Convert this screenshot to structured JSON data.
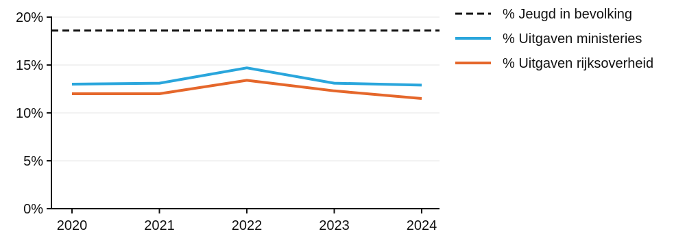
{
  "chart_data": {
    "type": "line",
    "title": "",
    "xlabel": "",
    "ylabel": "",
    "x": [
      "2020",
      "2021",
      "2022",
      "2023",
      "2024"
    ],
    "ylim": [
      0,
      20
    ],
    "yticks": [
      "0%",
      "5%",
      "10%",
      "15%",
      "20%"
    ],
    "ytick_values": [
      0,
      5,
      10,
      15,
      20
    ],
    "grid": "horizontal",
    "legend_position": "right",
    "series": [
      {
        "name": "% Jeugd in bevolking",
        "values": [
          18.6,
          18.6,
          18.6,
          18.6,
          18.6
        ],
        "color": "#111111",
        "style": "dashed"
      },
      {
        "name": "% Uitgaven ministeries",
        "values": [
          13.0,
          13.1,
          14.7,
          13.1,
          12.9
        ],
        "color": "#2aa6dc",
        "style": "solid"
      },
      {
        "name": "% Uitgaven rijksoverheid",
        "values": [
          12.0,
          12.0,
          13.4,
          12.3,
          11.5
        ],
        "color": "#e5672b",
        "style": "solid"
      }
    ]
  }
}
